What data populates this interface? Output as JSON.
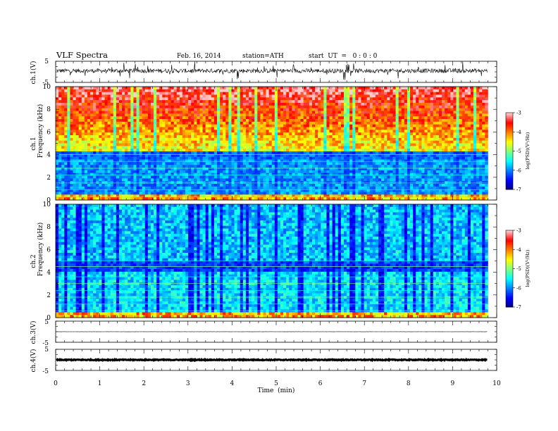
{
  "header": {
    "title": "VLF Spectra",
    "date": "Feb. 16, 2014",
    "station": "station=ATH",
    "start_ut": "start  UT  =   0 : 0 : 0"
  },
  "colors": {
    "jet": [
      "#00007f",
      "#0000ff",
      "#007fff",
      "#00ffff",
      "#7fff7f",
      "#ffff00",
      "#ff7f00",
      "#ff0000",
      "#ffcccc"
    ]
  },
  "chart_data": [
    {
      "type": "line",
      "name": "ch1-waveform",
      "ylabel": "ch.1(V)",
      "ylim": [
        -5,
        5
      ],
      "yticks": [
        "5",
        "-5"
      ],
      "baseline": 0.5,
      "noise_amplitude": 1.0
    },
    {
      "type": "heatmap",
      "name": "ch1-spectrogram",
      "ylabel_top": "ch.1",
      "ylabel": "Frequency  (kHz)",
      "ylim": [
        0,
        10
      ],
      "yticks": [
        "0",
        "2",
        "4",
        "6",
        "8",
        "10"
      ],
      "colorbar": {
        "label": "log(PSD)(V²/Hz)",
        "range": [
          -7,
          -3
        ],
        "ticks": [
          "-3",
          "-4",
          "-5",
          "-6",
          "-7"
        ]
      },
      "description": "broadband noise strongest (log PSD -3 to -4) above ~4 kHz, weak (~-6 to -7) below 4 kHz with horizontal bands"
    },
    {
      "type": "heatmap",
      "name": "ch2-spectrogram",
      "ylabel_top": "ch.2",
      "ylabel": "Frequency  (kHz)",
      "ylim": [
        0,
        10
      ],
      "yticks": [
        "0",
        "2",
        "4",
        "6",
        "8",
        "10"
      ],
      "colorbar": {
        "label": "log(PSD)(V²/Hz)",
        "range": [
          -7,
          -3
        ],
        "ticks": [
          "-3",
          "-4",
          "-5",
          "-6",
          "-7"
        ]
      },
      "description": "mostly weak (log PSD ~-5 to -6) with vertical impulsive streaks and horizontal bands below 5 kHz"
    },
    {
      "type": "line",
      "name": "ch3-waveform",
      "ylabel": "ch.3(V)",
      "ylim": [
        -5,
        5
      ],
      "yticks": [
        "5",
        "-5"
      ],
      "baseline": 0,
      "noise_amplitude": 0.05
    },
    {
      "type": "line",
      "name": "ch4-waveform",
      "ylabel": "ch.4(V)",
      "ylim": [
        -5,
        5
      ],
      "yticks": [
        "5",
        "-5"
      ],
      "baseline": 0,
      "noise_amplitude": 0.2
    }
  ],
  "x_axis": {
    "label": "Time  (min)",
    "range": [
      0,
      10
    ],
    "data_end": 9.8,
    "ticks": [
      "0",
      "1",
      "2",
      "3",
      "4",
      "5",
      "6",
      "7",
      "8",
      "9",
      "10"
    ]
  }
}
